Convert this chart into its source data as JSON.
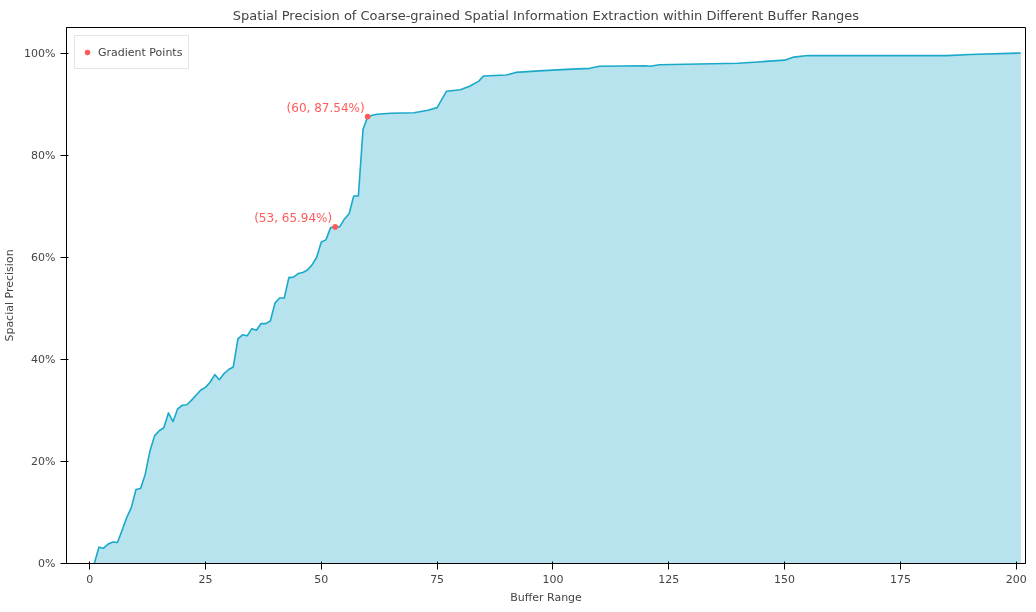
{
  "chart_data": {
    "type": "area",
    "title": "Spatial Precision of Coarse-grained Spatial Information Extraction within Different Buffer Ranges",
    "xlabel": "Buffer Range",
    "ylabel": "Spacial Precision",
    "xlim": [
      -5,
      202
    ],
    "ylim": [
      0,
      105
    ],
    "xticks": [
      0,
      25,
      50,
      75,
      100,
      125,
      150,
      175,
      200
    ],
    "yticks": [
      {
        "value": 0,
        "label": "0%"
      },
      {
        "value": 20,
        "label": "20%"
      },
      {
        "value": 40,
        "label": "40%"
      },
      {
        "value": 60,
        "label": "60%"
      },
      {
        "value": 80,
        "label": "80%"
      },
      {
        "value": 100,
        "label": "100%"
      }
    ],
    "grid": false,
    "legend": "top left",
    "series": [
      {
        "color": "#1ca9c9",
        "x": [
          1,
          2,
          3,
          4,
          5,
          6,
          7,
          8,
          9,
          10,
          11,
          12,
          13,
          14,
          15,
          16,
          17,
          18,
          19,
          20,
          21,
          22,
          23,
          24,
          25,
          26,
          27,
          28,
          29,
          30,
          31,
          32,
          33,
          34,
          35,
          36,
          37,
          38,
          39,
          40,
          41,
          42,
          43,
          44,
          45,
          46,
          47,
          48,
          49,
          50,
          51,
          52,
          53,
          54,
          55,
          56,
          57,
          58,
          59,
          60,
          61,
          62,
          65,
          70,
          73,
          75,
          77,
          80,
          82,
          84,
          85,
          90,
          92,
          97,
          103,
          108,
          110,
          120,
          121,
          123,
          140,
          145,
          150,
          152,
          155,
          185,
          190,
          201
        ],
        "values": [
          0,
          3.2,
          3.0,
          3.8,
          4.2,
          4.1,
          6.5,
          9,
          11,
          14.5,
          14.7,
          17.5,
          22,
          25,
          26,
          26.6,
          29.5,
          27.8,
          30.3,
          31,
          31.1,
          32,
          33,
          34,
          34.5,
          35.5,
          37,
          36,
          37.2,
          38,
          38.5,
          44,
          44.8,
          44.6,
          46,
          45.7,
          47,
          47,
          47.5,
          51,
          52,
          52,
          56,
          56.1,
          56.8,
          57,
          57.5,
          58.5,
          60,
          63,
          63.4,
          65.8,
          65.9,
          66,
          67.5,
          68.5,
          72,
          72,
          85,
          87.5,
          87.8,
          88,
          88.2,
          88.3,
          88.8,
          89.3,
          92.5,
          92.8,
          93.5,
          94.5,
          95.5,
          95.7,
          96.2,
          96.5,
          96.8,
          97.0,
          97.4,
          97.5,
          97.4,
          97.7,
          98,
          98.3,
          98.6,
          99.2,
          99.5,
          99.5,
          99.7,
          100
        ]
      },
      {
        "type": "scatter",
        "name": "Gradient Points",
        "color": "#ff5a5a",
        "marker": "circle",
        "x": [
          53,
          60
        ],
        "values": [
          65.94,
          87.54
        ],
        "value_labels": [
          "(53, 65.94%)",
          "(60, 87.54%)"
        ]
      }
    ]
  }
}
